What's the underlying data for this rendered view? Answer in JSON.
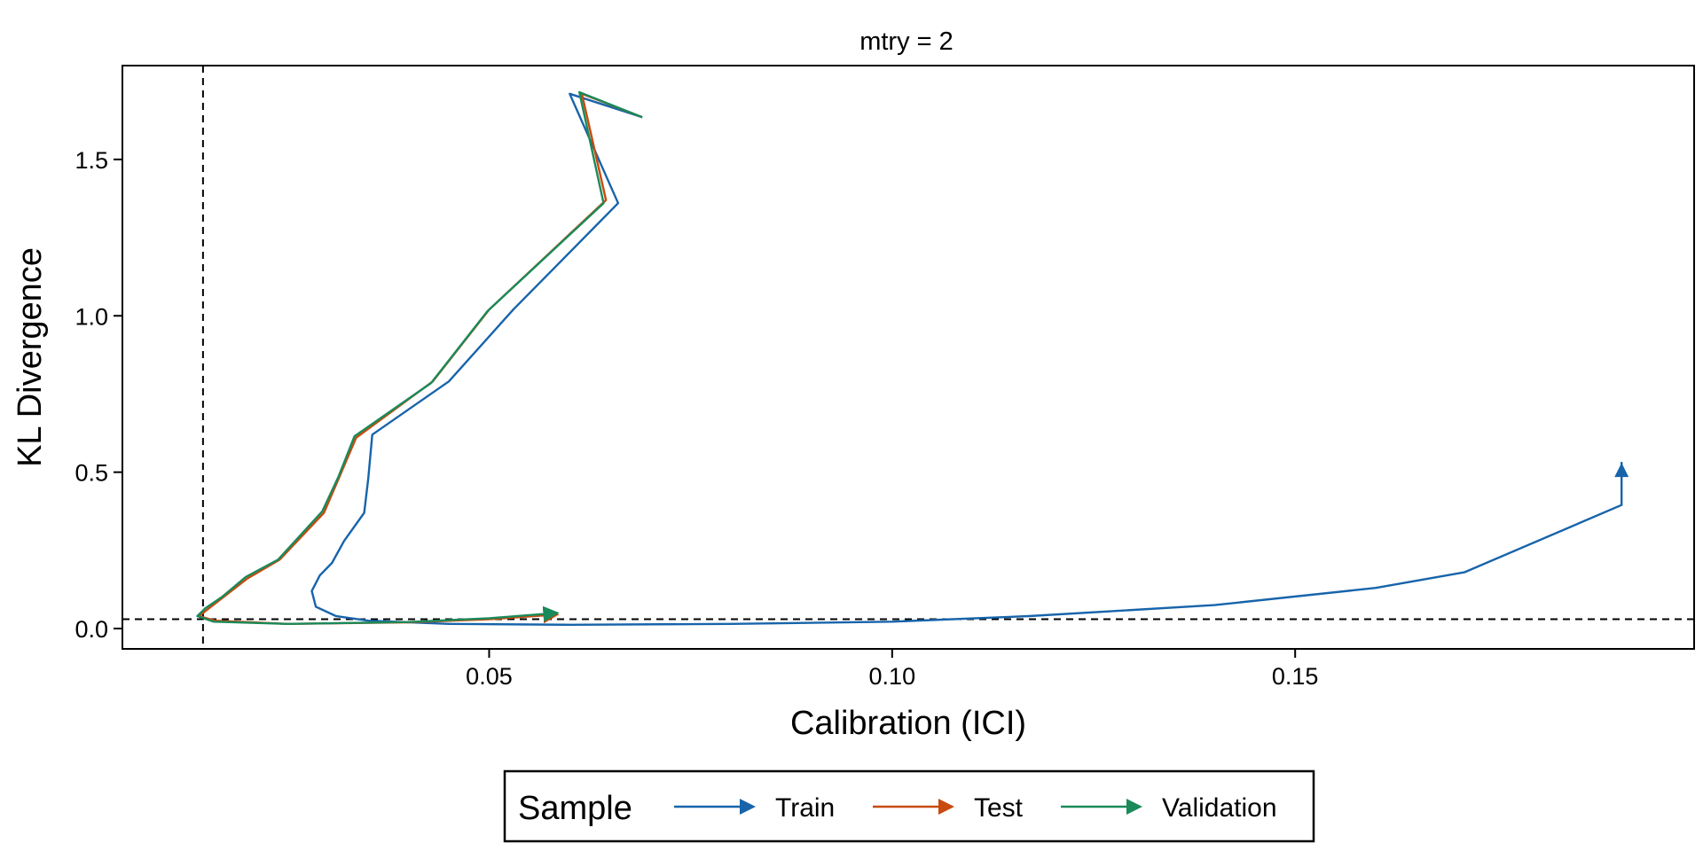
{
  "chart_data": {
    "type": "line",
    "facet_title": "mtry = 2",
    "xlabel": "Calibration (ICI)",
    "ylabel": "KL Divergence",
    "xlim": [
      0.0045,
      0.1995
    ],
    "ylim": [
      -0.065,
      1.8
    ],
    "x_ticks": [
      0.05,
      0.1,
      0.15
    ],
    "x_tick_labels": [
      "0.05",
      "0.10",
      "0.15"
    ],
    "y_ticks": [
      0.0,
      0.5,
      1.0,
      1.5
    ],
    "y_tick_labels": [
      "0.0",
      "0.5",
      "1.0",
      "1.5"
    ],
    "reference_lines": {
      "vline_x": 0.0145,
      "hline_y": 0.03
    },
    "legend": {
      "title": "Sample",
      "position": "bottom"
    },
    "series": [
      {
        "name": "Train",
        "color": "#1764ab",
        "points": [
          [
            0.1905,
            0.395
          ],
          [
            0.1905,
            0.53
          ],
          [
            0.1905,
            0.395
          ],
          [
            0.171,
            0.18
          ],
          [
            0.16,
            0.13
          ],
          [
            0.14,
            0.075
          ],
          [
            0.117,
            0.04
          ],
          [
            0.1,
            0.022
          ],
          [
            0.08,
            0.015
          ],
          [
            0.06,
            0.012
          ],
          [
            0.045,
            0.015
          ],
          [
            0.035,
            0.025
          ],
          [
            0.031,
            0.04
          ],
          [
            0.0285,
            0.07
          ],
          [
            0.028,
            0.12
          ],
          [
            0.029,
            0.17
          ],
          [
            0.0305,
            0.21
          ],
          [
            0.032,
            0.28
          ],
          [
            0.0345,
            0.37
          ],
          [
            0.035,
            0.48
          ],
          [
            0.0355,
            0.62
          ],
          [
            0.045,
            0.79
          ],
          [
            0.053,
            1.02
          ],
          [
            0.066,
            1.36
          ],
          [
            0.06,
            1.71
          ],
          [
            0.069,
            1.635
          ]
        ]
      },
      {
        "name": "Test",
        "color": "#c84a0e",
        "points": [
          [
            0.069,
            1.635
          ],
          [
            0.0615,
            1.71
          ],
          [
            0.0645,
            1.37
          ],
          [
            0.05,
            1.02
          ],
          [
            0.043,
            0.79
          ],
          [
            0.0335,
            0.61
          ],
          [
            0.0315,
            0.49
          ],
          [
            0.0295,
            0.37
          ],
          [
            0.024,
            0.22
          ],
          [
            0.02,
            0.16
          ],
          [
            0.017,
            0.1
          ],
          [
            0.015,
            0.06
          ],
          [
            0.014,
            0.04
          ],
          [
            0.016,
            0.025
          ],
          [
            0.025,
            0.015
          ],
          [
            0.04,
            0.02
          ],
          [
            0.05,
            0.03
          ],
          [
            0.0585,
            0.045
          ]
        ]
      },
      {
        "name": "Validation",
        "color": "#1a8a5a",
        "points": [
          [
            0.069,
            1.635
          ],
          [
            0.0612,
            1.715
          ],
          [
            0.0642,
            1.36
          ],
          [
            0.0498,
            1.015
          ],
          [
            0.0428,
            0.785
          ],
          [
            0.0333,
            0.615
          ],
          [
            0.0313,
            0.485
          ],
          [
            0.0293,
            0.375
          ],
          [
            0.0238,
            0.22
          ],
          [
            0.0198,
            0.165
          ],
          [
            0.0168,
            0.1
          ],
          [
            0.0148,
            0.065
          ],
          [
            0.0138,
            0.04
          ],
          [
            0.0158,
            0.022
          ],
          [
            0.025,
            0.015
          ],
          [
            0.04,
            0.021
          ],
          [
            0.05,
            0.033
          ],
          [
            0.0585,
            0.05
          ]
        ]
      }
    ]
  }
}
